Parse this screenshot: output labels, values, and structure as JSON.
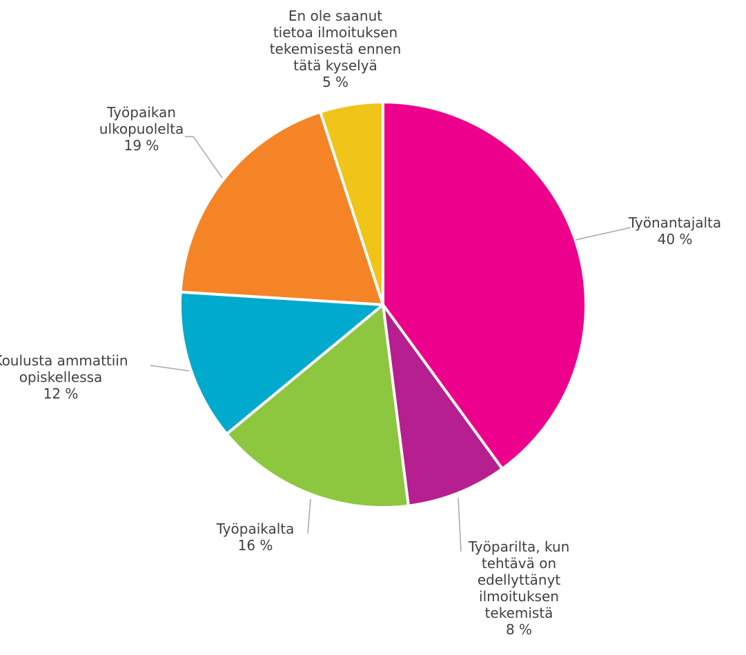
{
  "chart_data": {
    "type": "pie",
    "title": "",
    "series": [
      {
        "values": [
          40,
          8,
          16,
          12,
          19,
          5
        ],
        "categories": [
          "Työnantajalta",
          "Työparilta, kun tehtävä on edellyttänyt ilmoituksen tekemistä",
          "Työpaikalta",
          "Koulusta ammattiin opiskellessa",
          "Työpaikan ulkopuolelta",
          "En ole saanut tietoa ilmoituksen tekemisestä ennen tätä kyselyä"
        ]
      }
    ],
    "slices": [
      {
        "label_lines": [
          "Työnantajalta"
        ],
        "value": 40,
        "value_label": "40 %",
        "color": "#EC008C"
      },
      {
        "label_lines": [
          "Työparilta, kun",
          "tehtävä on",
          "edellyttänyt",
          "ilmoituksen",
          "tekemistä"
        ],
        "value": 8,
        "value_label": "8 %",
        "color": "#B51F8F"
      },
      {
        "label_lines": [
          "Työpaikalta"
        ],
        "value": 16,
        "value_label": "16 %",
        "color": "#8DC63F"
      },
      {
        "label_lines": [
          "Koulusta ammattiin",
          "opiskellessa"
        ],
        "value": 12,
        "value_label": "12 %",
        "color": "#00AACC"
      },
      {
        "label_lines": [
          "Työpaikan",
          "ulkopuolelta"
        ],
        "value": 19,
        "value_label": "19 %",
        "color": "#F58426"
      },
      {
        "label_lines": [
          "En ole saanut",
          "tietoa ilmoituksen",
          "tekemisestä ennen",
          "tätä kyselyä"
        ],
        "value": 5,
        "value_label": "5 %",
        "color": "#F0C419"
      }
    ],
    "start_angle": "12 o'clock",
    "direction": "clockwise",
    "legend": "none",
    "data_labels": "outside with leader lines"
  }
}
